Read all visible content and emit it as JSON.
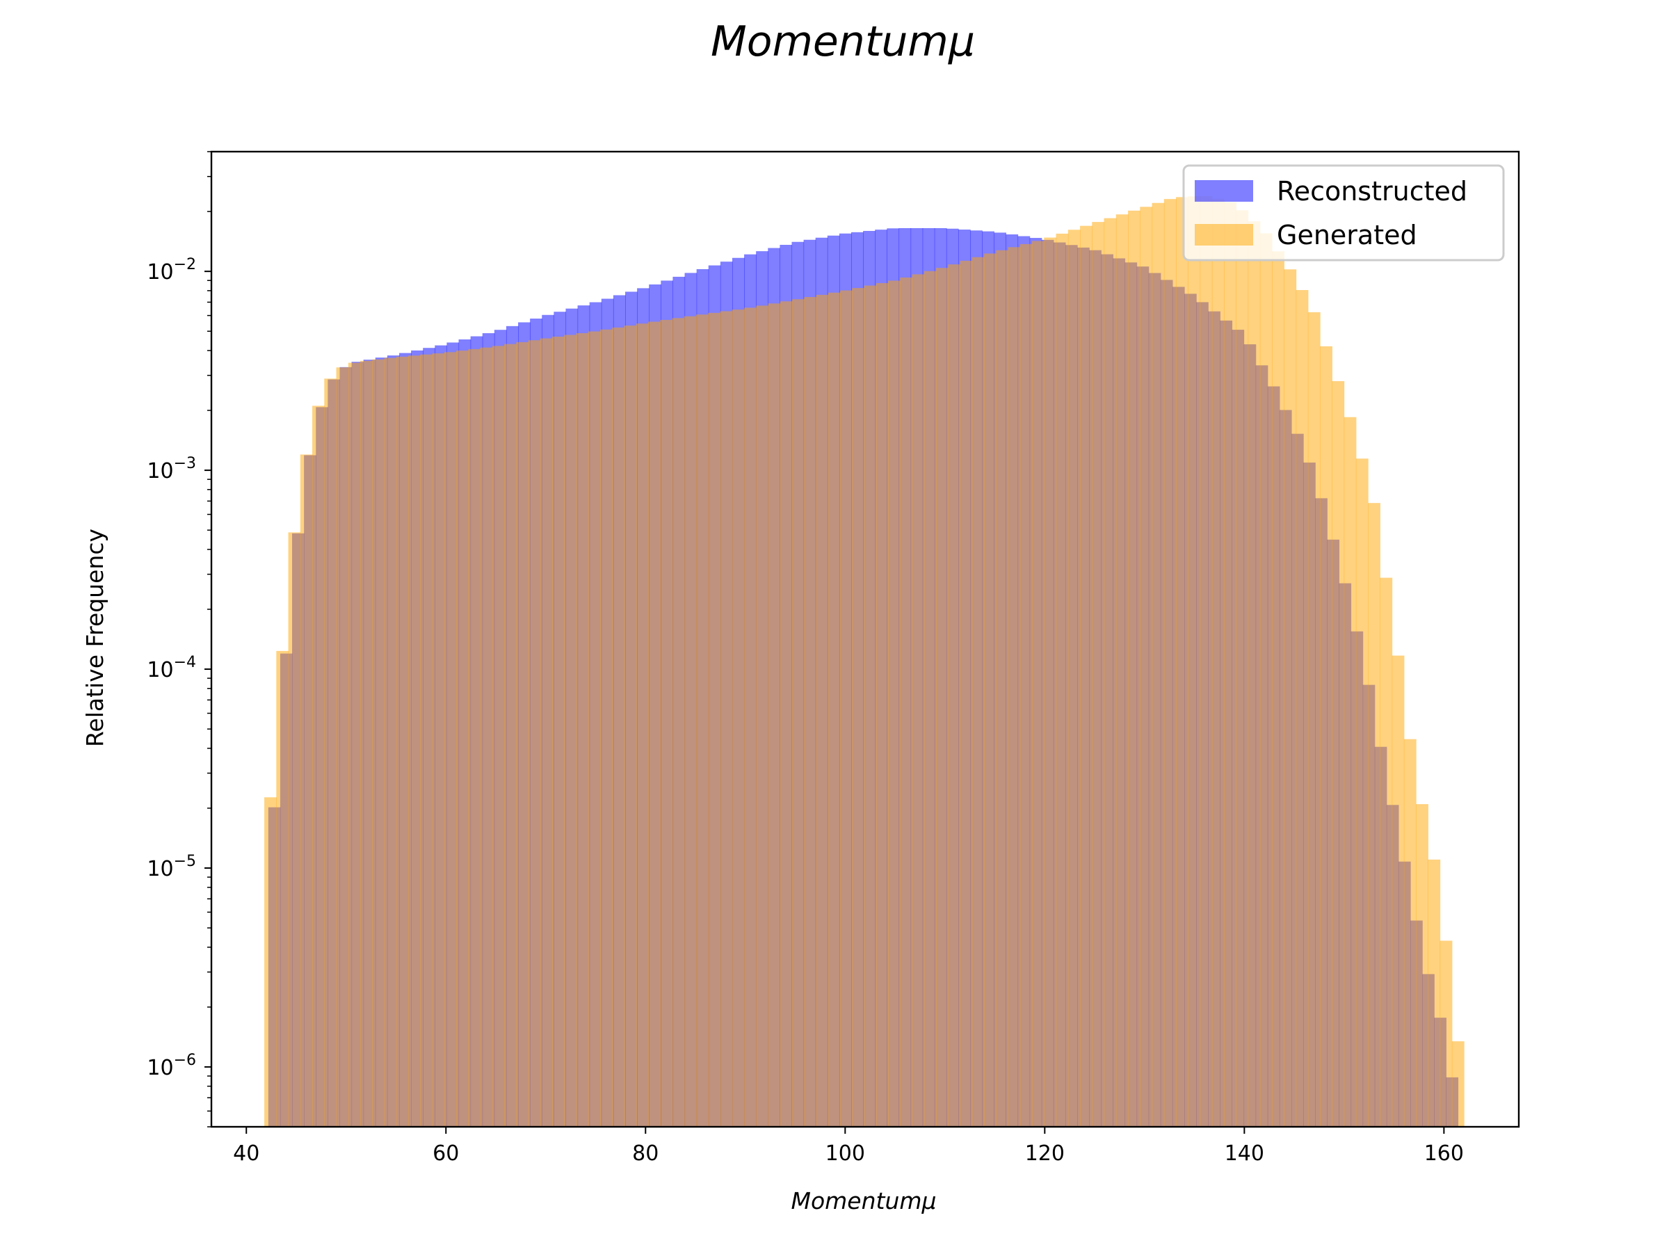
{
  "chart_data": {
    "type": "histogram",
    "title": "Momentumμ",
    "xlabel": "Momentumμ",
    "ylabel": "Relative Frequency",
    "xlim": [
      36.5,
      167.5
    ],
    "ylim": [
      5e-07,
      0.04
    ],
    "yscale": "log",
    "x_ticks": [
      40,
      60,
      80,
      100,
      120,
      140,
      160
    ],
    "y_ticks": [
      {
        "value": 1e-06,
        "exponent": "−6"
      },
      {
        "value": 1e-05,
        "exponent": "−5"
      },
      {
        "value": 0.0001,
        "exponent": "−4"
      },
      {
        "value": 0.001,
        "exponent": "−3"
      },
      {
        "value": 0.01,
        "exponent": "−2"
      }
    ],
    "tick_base": "10",
    "legend_position": "upper right",
    "series": [
      {
        "name": "Reconstructed",
        "color": "#0000ff",
        "alpha": 0.5,
        "bins": [
          {
            "x0": 42.2,
            "x1": 161.4,
            "ctrl": [
              [
                42.2,
                7.8e-06
              ],
              [
                43.4,
                5.3e-05
              ],
              [
                44.6,
                0.00028
              ],
              [
                45.8,
                0.00086
              ],
              [
                47.0,
                0.0017
              ],
              [
                48.2,
                0.0026
              ],
              [
                49.4,
                0.0032
              ],
              [
                51,
                0.0035
              ],
              [
                55,
                0.0038
              ],
              [
                60,
                0.0043
              ],
              [
                65,
                0.005
              ],
              [
                70,
                0.006
              ],
              [
                75,
                0.007
              ],
              [
                80,
                0.0083
              ],
              [
                85,
                0.01
              ],
              [
                90,
                0.012
              ],
              [
                95,
                0.014
              ],
              [
                100,
                0.0155
              ],
              [
                105,
                0.0165
              ],
              [
                110,
                0.0165
              ],
              [
                115,
                0.0158
              ],
              [
                120,
                0.0145
              ],
              [
                125,
                0.0128
              ],
              [
                130,
                0.0105
              ],
              [
                135,
                0.0075
              ],
              [
                140,
                0.0048
              ],
              [
                143,
                0.0026
              ],
              [
                146,
                0.0013
              ],
              [
                148,
                0.00065
              ],
              [
                150,
                0.00028
              ],
              [
                152,
                0.00011
              ],
              [
                154,
                3.3e-05
              ],
              [
                156,
                1.1e-05
              ],
              [
                158,
                3.5e-06
              ],
              [
                160,
                1.5e-06
              ],
              [
                161.4,
                6e-07
              ]
            ]
          }
        ]
      },
      {
        "name": "Generated",
        "color": "#ffa500",
        "alpha": 0.5,
        "bins": [
          {
            "x0": 41.8,
            "x1": 162.0,
            "ctrl": [
              [
                41.8,
                9.5e-06
              ],
              [
                43.0,
                5.4e-05
              ],
              [
                44.2,
                0.00028
              ],
              [
                45.4,
                0.00084
              ],
              [
                46.6,
                0.0017
              ],
              [
                47.8,
                0.0026
              ],
              [
                49.0,
                0.0032
              ],
              [
                51,
                0.0035
              ],
              [
                55,
                0.0037
              ],
              [
                60,
                0.0039
              ],
              [
                65,
                0.0042
              ],
              [
                70,
                0.0046
              ],
              [
                75,
                0.005
              ],
              [
                80,
                0.0055
              ],
              [
                85,
                0.006
              ],
              [
                90,
                0.0065
              ],
              [
                95,
                0.0072
              ],
              [
                100,
                0.008
              ],
              [
                105,
                0.009
              ],
              [
                110,
                0.0105
              ],
              [
                115,
                0.0125
              ],
              [
                120,
                0.0145
              ],
              [
                125,
                0.0175
              ],
              [
                130,
                0.021
              ],
              [
                133,
                0.0235
              ],
              [
                136,
                0.024
              ],
              [
                139,
                0.022
              ],
              [
                142,
                0.016
              ],
              [
                145,
                0.0095
              ],
              [
                147,
                0.0062
              ],
              [
                149,
                0.0032
              ],
              [
                151,
                0.0016
              ],
              [
                153,
                0.00068
              ],
              [
                155,
                0.00016
              ],
              [
                157,
                3.2e-05
              ],
              [
                159,
                1.1e-05
              ],
              [
                161,
                2.3e-06
              ],
              [
                162,
                6e-07
              ]
            ]
          }
        ]
      }
    ]
  }
}
